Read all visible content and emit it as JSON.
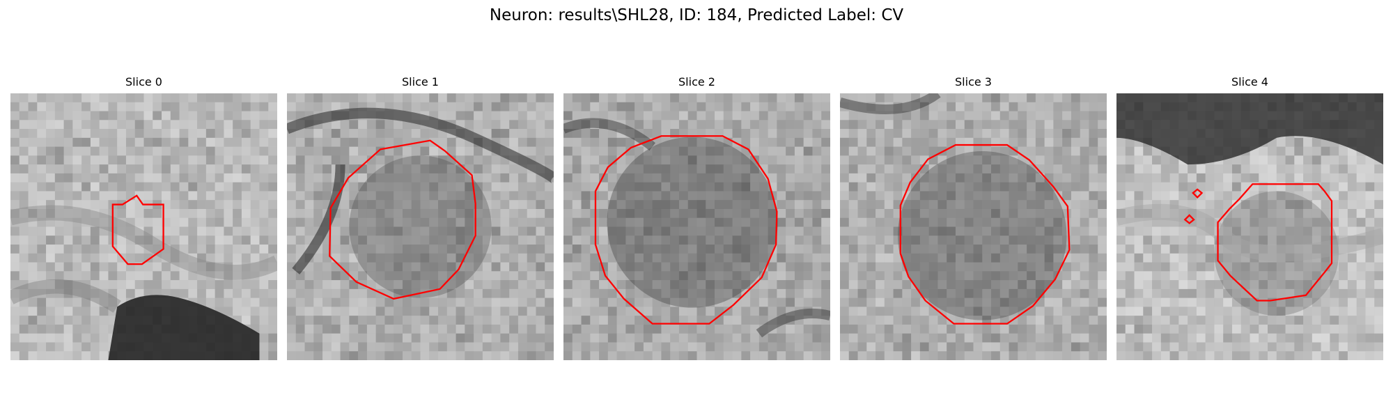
{
  "figure": {
    "title": "Neuron: results\\SHL28, ID: 184, Predicted Label: CV",
    "contour_color": "#ff0000"
  },
  "slices": [
    {
      "label": "Slice 0"
    },
    {
      "label": "Slice 1"
    },
    {
      "label": "Slice 2"
    },
    {
      "label": "Slice 3"
    },
    {
      "label": "Slice 4"
    }
  ]
}
